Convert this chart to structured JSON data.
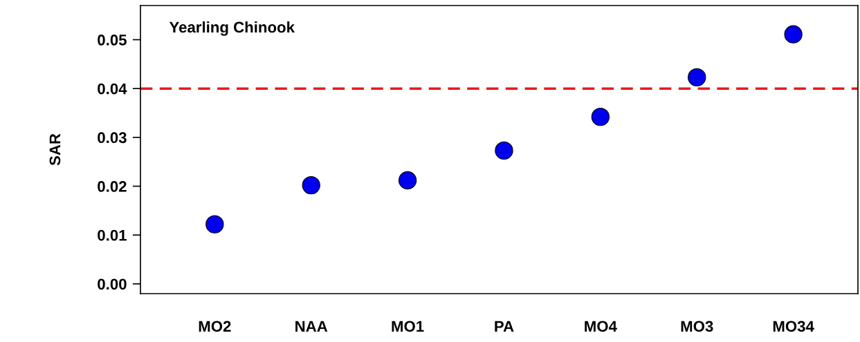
{
  "chart_data": {
    "type": "scatter",
    "ylabel": "SAR",
    "categories": [
      "MO2",
      "NAA",
      "MO1",
      "PA",
      "MO4",
      "MO3",
      "MO34"
    ],
    "series": [
      {
        "color": "#0000ee",
        "values": [
          0.0122,
          0.0202,
          0.0212,
          0.0273,
          0.0342,
          0.0423,
          0.0511
        ]
      }
    ],
    "ylim": [
      -0.002,
      0.057
    ],
    "yticks": [
      {
        "value": 0,
        "label": "0.00"
      },
      {
        "value": 0.01,
        "label": "0.01"
      },
      {
        "value": 0.02,
        "label": "0.02"
      },
      {
        "value": 0.03,
        "label": "0.03"
      },
      {
        "value": 0.04,
        "label": "0.04"
      },
      {
        "value": 0.05,
        "label": "0.05"
      }
    ],
    "ref_lines": [
      {
        "axis": "y",
        "value": 0.04,
        "color": "#e8191c",
        "line_style": "dashed"
      }
    ],
    "annotations": [
      "Yearling Chinook"
    ],
    "marker": "circle",
    "grid": false,
    "legend": false
  }
}
